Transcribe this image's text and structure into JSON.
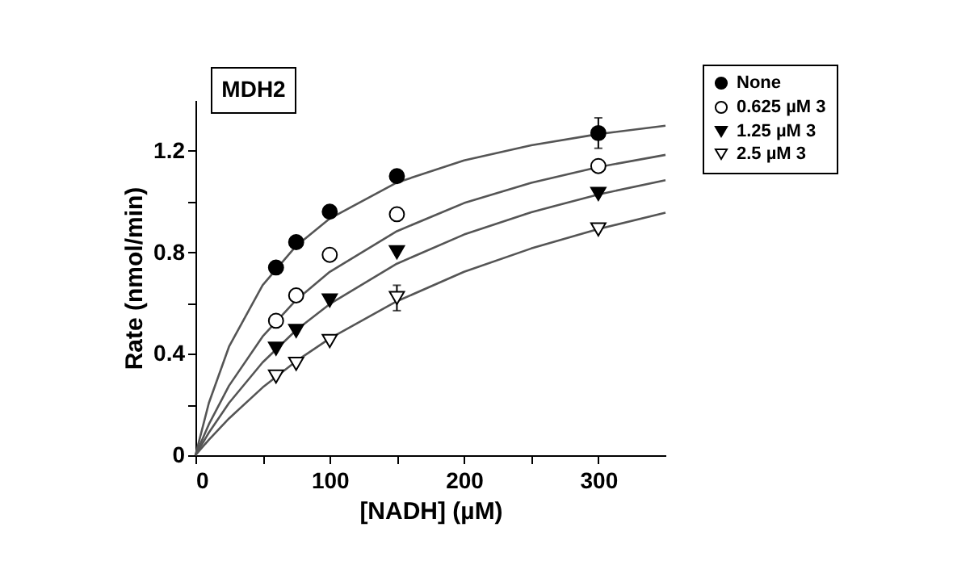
{
  "chart_data": {
    "type": "scatter",
    "title": "MDH2",
    "xlabel": "[NADH] (µM)",
    "ylabel": "Rate (nmol/min)",
    "xlim": [
      0,
      350
    ],
    "xticks": [
      0,
      {
        "value": 50,
        "label": null
      },
      100,
      {
        "value": 150,
        "label": null
      },
      200,
      {
        "value": 250,
        "label": null
      },
      300
    ],
    "ylim": [
      0,
      1.4
    ],
    "yticks": [
      0,
      {
        "value": 0.2,
        "label": null
      },
      0.4,
      {
        "value": 0.6,
        "label": null
      },
      0.8,
      {
        "value": 1.0,
        "label": null
      },
      1.2
    ],
    "grid": false,
    "legend": "top right",
    "x": [
      60,
      75,
      100,
      150,
      300
    ],
    "series": [
      {
        "name": "None",
        "color": "#000000",
        "marker": "circle",
        "values": [
          0.74,
          0.84,
          0.96,
          1.1,
          1.27
        ],
        "errors": [
          null,
          null,
          null,
          null,
          0.06
        ]
      },
      {
        "name": "0.625 µM 3",
        "color": "#ffffff",
        "marker": "circle",
        "values": [
          0.53,
          0.63,
          0.79,
          0.95,
          1.14
        ]
      },
      {
        "name": "1.25 µM 3",
        "color": "#000000",
        "marker": "triangle",
        "values": [
          0.42,
          0.49,
          0.61,
          0.8,
          1.03
        ]
      },
      {
        "name": "2.5 µM 3",
        "color": "#ffffff",
        "marker": "triangle",
        "values": [
          0.31,
          0.36,
          0.45,
          0.62,
          0.89
        ],
        "errors": [
          null,
          null,
          null,
          0.05,
          null
        ]
      },
      {
        "type": "line",
        "color": "#555555",
        "x": [
          0,
          10,
          25,
          50,
          75,
          100,
          150,
          200,
          250,
          300,
          350
        ],
        "values": [
          0,
          0.206,
          0.428,
          0.67,
          0.825,
          0.933,
          1.075,
          1.162,
          1.222,
          1.266,
          1.299
        ]
      },
      {
        "type": "line",
        "color": "#555555",
        "x": [
          0,
          10,
          25,
          50,
          75,
          100,
          150,
          200,
          250,
          300,
          350
        ],
        "values": [
          0,
          0.122,
          0.274,
          0.468,
          0.612,
          0.723,
          0.883,
          0.994,
          1.074,
          1.136,
          1.184
        ]
      },
      {
        "type": "line",
        "color": "#555555",
        "x": [
          0,
          10,
          25,
          50,
          75,
          100,
          150,
          200,
          250,
          300,
          350
        ],
        "values": [
          0,
          0.089,
          0.206,
          0.366,
          0.493,
          0.596,
          0.755,
          0.87,
          0.958,
          1.028,
          1.084
        ]
      },
      {
        "type": "line",
        "color": "#555555",
        "x": [
          0,
          10,
          25,
          50,
          75,
          100,
          150,
          200,
          250,
          300,
          350
        ],
        "values": [
          0,
          0.061,
          0.145,
          0.267,
          0.371,
          0.46,
          0.607,
          0.723,
          0.815,
          0.892,
          0.956
        ]
      }
    ]
  }
}
